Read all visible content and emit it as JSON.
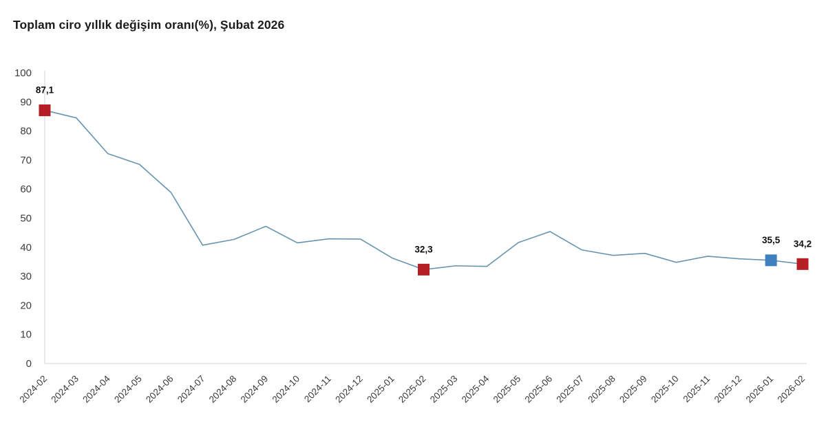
{
  "page": {
    "background_color": "#ffffff"
  },
  "chart_data": {
    "type": "line",
    "title": "Toplam ciro yıllık değişim oranı(%), Şubat 2026",
    "categories": [
      "2024-02",
      "2024-03",
      "2024-04",
      "2024-05",
      "2024-06",
      "2024-07",
      "2024-08",
      "2024-09",
      "2024-10",
      "2024-11",
      "2024-12",
      "2025-01",
      "2025-02",
      "2025-03",
      "2025-04",
      "2025-05",
      "2025-06",
      "2025-07",
      "2025-08",
      "2025-09",
      "2025-10",
      "2025-11",
      "2025-12",
      "2026-01",
      "2026-02"
    ],
    "values": [
      87.1,
      84.5,
      72.2,
      68.5,
      58.8,
      40.7,
      42.7,
      47.2,
      41.5,
      42.9,
      42.8,
      36.3,
      32.3,
      33.6,
      33.4,
      41.6,
      45.4,
      39.1,
      37.2,
      37.9,
      34.8,
      36.9,
      36.0,
      35.5,
      34.2
    ],
    "ylim": [
      0,
      100
    ],
    "y_ticks": [
      0,
      10,
      20,
      30,
      40,
      50,
      60,
      70,
      80,
      90,
      100
    ],
    "grid": "off",
    "legend": "none",
    "x_tick_rotation": -45,
    "decimal_separator": ",",
    "line_color": "#6693af",
    "axis_color": "#dcdcdc",
    "tick_label_color": "#3d3d3d",
    "title_color": "#1c1c1c",
    "highlighted_points": [
      {
        "category": "2024-02",
        "index": 0,
        "value": 87.1,
        "label": "87,1",
        "marker_color": "#b41e24",
        "marker": "square"
      },
      {
        "category": "2025-02",
        "index": 12,
        "value": 32.3,
        "label": "32,3",
        "marker_color": "#b41e24",
        "marker": "square"
      },
      {
        "category": "2026-01",
        "index": 23,
        "value": 35.5,
        "label": "35,5",
        "marker_color": "#3e7fbe",
        "marker": "square"
      },
      {
        "category": "2026-02",
        "index": 24,
        "value": 34.2,
        "label": "34,2",
        "marker_color": "#b41e24",
        "marker": "square"
      }
    ]
  }
}
